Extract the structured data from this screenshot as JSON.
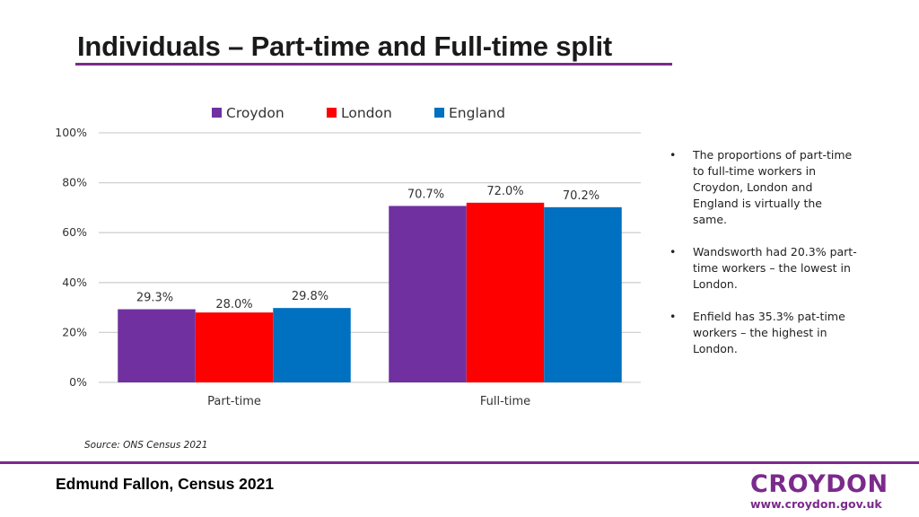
{
  "slide": {
    "title": "Individuals – Part-time and Full-time split",
    "source": "Source: ONS Census 2021",
    "footer": "Edmund Fallon, Census 2021",
    "logo_word": "CROYDON",
    "logo_url": "www.croydon.gov.uk",
    "accent_color": "#7b2a8c"
  },
  "bullets": [
    "The proportions of part-time to full-time workers in Croydon, London and England is virtually the same.",
    "Wandsworth had 20.3% part-time workers – the lowest in London.",
    "Enfield has 35.3% pat-time workers – the highest in London."
  ],
  "chart_data": {
    "type": "bar",
    "title": "",
    "xlabel": "",
    "ylabel": "",
    "categories": [
      "Part-time",
      "Full-time"
    ],
    "series": [
      {
        "name": "Croydon",
        "color": "#7030a0",
        "values": [
          29.3,
          70.7
        ],
        "labels": [
          "29.3%",
          "70.7%"
        ]
      },
      {
        "name": "London",
        "color": "#ff0000",
        "values": [
          28.0,
          72.0
        ],
        "labels": [
          "28.0%",
          "72.0%"
        ]
      },
      {
        "name": "England",
        "color": "#0070c0",
        "values": [
          29.8,
          70.2
        ],
        "labels": [
          "29.8%",
          "70.2%"
        ]
      }
    ],
    "ylim": [
      0,
      100
    ],
    "yticks": [
      0,
      20,
      40,
      60,
      80,
      100
    ],
    "ytick_labels": [
      "0%",
      "20%",
      "40%",
      "60%",
      "80%",
      "100%"
    ],
    "grid": true,
    "legend": "top-center"
  }
}
